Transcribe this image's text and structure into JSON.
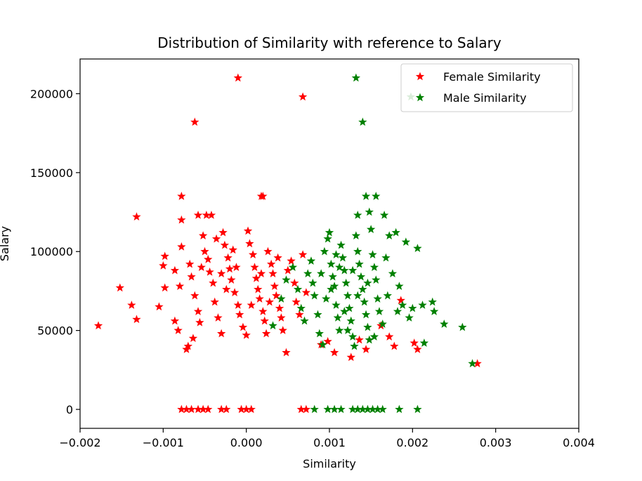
{
  "chart_data": {
    "type": "scatter",
    "title": "Distribution of Similarity with reference to Salary",
    "xlabel": "Similarity",
    "ylabel": "Salary",
    "xlim": [
      -0.002,
      0.004
    ],
    "ylim": [
      -12000,
      222000
    ],
    "xticks": [
      -0.002,
      -0.001,
      0.0,
      0.001,
      0.002,
      0.003,
      0.004
    ],
    "xtick_labels": [
      "−0.002",
      "−0.001",
      "0.000",
      "0.001",
      "0.002",
      "0.003",
      "0.004"
    ],
    "yticks": [
      0,
      50000,
      100000,
      150000,
      200000
    ],
    "ytick_labels": [
      "0",
      "50000",
      "100000",
      "150000",
      "200000"
    ],
    "marker": "star",
    "legend": {
      "position": "upper-right",
      "entries": [
        {
          "label": "Female Similarity",
          "color": "#ff0000"
        },
        {
          "label": "Male Similarity",
          "color": "#008000"
        }
      ]
    },
    "series": [
      {
        "name": "Female Similarity",
        "color": "#ff0000",
        "points": [
          [
            -0.0001,
            210000
          ],
          [
            0.00068,
            198000
          ],
          [
            -0.00062,
            182000
          ],
          [
            -0.00078,
            135000
          ],
          [
            0.00018,
            135000
          ],
          [
            0.0002,
            135000
          ],
          [
            -0.00132,
            122000
          ],
          [
            -0.00058,
            123000
          ],
          [
            -0.00048,
            123000
          ],
          [
            -0.00042,
            123000
          ],
          [
            -0.00078,
            120000
          ],
          [
            -0.00178,
            53000
          ],
          [
            -0.00152,
            77000
          ],
          [
            -0.00138,
            66000
          ],
          [
            -0.00132,
            57000
          ],
          [
            -0.00105,
            65000
          ],
          [
            -0.00098,
            77000
          ],
          [
            -0.001,
            91000
          ],
          [
            -0.00098,
            97000
          ],
          [
            -0.00086,
            88000
          ],
          [
            -0.0008,
            78000
          ],
          [
            -0.00082,
            50000
          ],
          [
            -0.00086,
            56000
          ],
          [
            -0.00072,
            38000
          ],
          [
            -0.0007,
            40000
          ],
          [
            -0.00064,
            45000
          ],
          [
            -0.00078,
            103000
          ],
          [
            -0.00068,
            92000
          ],
          [
            -0.00066,
            84000
          ],
          [
            -0.00062,
            72000
          ],
          [
            -0.00058,
            62000
          ],
          [
            -0.00056,
            55000
          ],
          [
            -0.00052,
            110000
          ],
          [
            -0.0005,
            100000
          ],
          [
            -0.00046,
            95000
          ],
          [
            -0.00044,
            87000
          ],
          [
            -0.0004,
            80000
          ],
          [
            -0.00038,
            68000
          ],
          [
            -0.00034,
            58000
          ],
          [
            -0.0003,
            48000
          ],
          [
            -0.00028,
            112000
          ],
          [
            -0.00026,
            104000
          ],
          [
            -0.00022,
            96000
          ],
          [
            -0.0002,
            89000
          ],
          [
            -0.00018,
            82000
          ],
          [
            -0.00014,
            74000
          ],
          [
            -0.0001,
            66000
          ],
          [
            -8e-05,
            60000
          ],
          [
            -4e-05,
            52000
          ],
          [
            0.0,
            47000
          ],
          [
            2e-05,
            113000
          ],
          [
            4e-05,
            105000
          ],
          [
            8e-05,
            98000
          ],
          [
            0.0001,
            90000
          ],
          [
            0.00012,
            83000
          ],
          [
            0.00014,
            76000
          ],
          [
            0.00016,
            70000
          ],
          [
            0.0002,
            62000
          ],
          [
            0.00022,
            56000
          ],
          [
            0.00024,
            48000
          ],
          [
            0.00026,
            100000
          ],
          [
            0.0003,
            92000
          ],
          [
            0.00032,
            86000
          ],
          [
            0.00034,
            78000
          ],
          [
            0.00036,
            72000
          ],
          [
            0.0004,
            64000
          ],
          [
            0.00042,
            58000
          ],
          [
            0.00044,
            50000
          ],
          [
            0.00048,
            36000
          ],
          [
            0.0005,
            88000
          ],
          [
            0.00054,
            94000
          ],
          [
            0.00058,
            80000
          ],
          [
            0.0006,
            68000
          ],
          [
            0.00064,
            60000
          ],
          [
            0.00068,
            98000
          ],
          [
            0.00072,
            74000
          ],
          [
            -0.00036,
            108000
          ],
          [
            -0.00024,
            76000
          ],
          [
            -0.00012,
            90000
          ],
          [
            6e-05,
            66000
          ],
          [
            0.00018,
            86000
          ],
          [
            -0.00054,
            90000
          ],
          [
            -0.00016,
            101000
          ],
          [
            -0.0003,
            86000
          ],
          [
            0.00028,
            68000
          ],
          [
            0.00038,
            96000
          ],
          [
            0.0009,
            41000
          ],
          [
            0.00098,
            43000
          ],
          [
            0.00106,
            36000
          ],
          [
            0.00126,
            33000
          ],
          [
            0.00136,
            44000
          ],
          [
            0.00144,
            38000
          ],
          [
            0.00162,
            53000
          ],
          [
            0.00172,
            46000
          ],
          [
            0.00178,
            40000
          ],
          [
            0.00186,
            69000
          ],
          [
            0.00202,
            42000
          ],
          [
            0.00206,
            38000
          ],
          [
            0.00278,
            29000
          ],
          [
            -0.00078,
            0
          ],
          [
            -0.00072,
            0
          ],
          [
            -0.00066,
            0
          ],
          [
            -0.00058,
            0
          ],
          [
            -0.00052,
            0
          ],
          [
            -0.00046,
            0
          ],
          [
            -0.0003,
            0
          ],
          [
            -0.00024,
            0
          ],
          [
            -6e-05,
            0
          ],
          [
            0.0,
            0
          ],
          [
            6e-05,
            0
          ],
          [
            0.00066,
            0
          ],
          [
            0.00072,
            0
          ]
        ]
      },
      {
        "name": "Male Similarity",
        "color": "#008000",
        "points": [
          [
            0.00132,
            210000
          ],
          [
            0.00198,
            198000
          ],
          [
            0.0014,
            182000
          ],
          [
            0.00144,
            135000
          ],
          [
            0.00156,
            135000
          ],
          [
            0.00134,
            123000
          ],
          [
            0.00166,
            123000
          ],
          [
            0.00148,
            125000
          ],
          [
            0.00032,
            53000
          ],
          [
            0.00042,
            70000
          ],
          [
            0.00048,
            82000
          ],
          [
            0.00056,
            90000
          ],
          [
            0.00062,
            76000
          ],
          [
            0.00066,
            64000
          ],
          [
            0.0007,
            56000
          ],
          [
            0.00074,
            86000
          ],
          [
            0.00078,
            94000
          ],
          [
            0.00082,
            72000
          ],
          [
            0.00086,
            60000
          ],
          [
            0.00088,
            48000
          ],
          [
            0.00092,
            41000
          ],
          [
            0.00094,
            100000
          ],
          [
            0.00098,
            108000
          ],
          [
            0.001,
            112000
          ],
          [
            0.00102,
            92000
          ],
          [
            0.00104,
            84000
          ],
          [
            0.00106,
            78000
          ],
          [
            0.00108,
            66000
          ],
          [
            0.0011,
            58000
          ],
          [
            0.00112,
            50000
          ],
          [
            0.00114,
            104000
          ],
          [
            0.00116,
            96000
          ],
          [
            0.00118,
            88000
          ],
          [
            0.0012,
            80000
          ],
          [
            0.00122,
            72000
          ],
          [
            0.00124,
            64000
          ],
          [
            0.00126,
            56000
          ],
          [
            0.00128,
            46000
          ],
          [
            0.0013,
            40000
          ],
          [
            0.00132,
            110000
          ],
          [
            0.00134,
            100000
          ],
          [
            0.00136,
            92000
          ],
          [
            0.00138,
            84000
          ],
          [
            0.0014,
            76000
          ],
          [
            0.00142,
            68000
          ],
          [
            0.00144,
            60000
          ],
          [
            0.00146,
            52000
          ],
          [
            0.00148,
            44000
          ],
          [
            0.0015,
            114000
          ],
          [
            0.00152,
            98000
          ],
          [
            0.00154,
            90000
          ],
          [
            0.00156,
            82000
          ],
          [
            0.00158,
            70000
          ],
          [
            0.0016,
            62000
          ],
          [
            0.00164,
            54000
          ],
          [
            0.00168,
            96000
          ],
          [
            0.00172,
            110000
          ],
          [
            0.00176,
            86000
          ],
          [
            0.0018,
            112000
          ],
          [
            0.00184,
            78000
          ],
          [
            0.00188,
            66000
          ],
          [
            0.00192,
            106000
          ],
          [
            0.00196,
            58000
          ],
          [
            0.002,
            64000
          ],
          [
            0.00206,
            102000
          ],
          [
            0.00212,
            66000
          ],
          [
            0.00214,
            42000
          ],
          [
            0.00224,
            68000
          ],
          [
            0.00226,
            62000
          ],
          [
            0.00238,
            54000
          ],
          [
            0.0026,
            52000
          ],
          [
            0.00272,
            29000
          ],
          [
            0.00112,
            90000
          ],
          [
            0.00096,
            70000
          ],
          [
            0.00118,
            62000
          ],
          [
            0.00108,
            98000
          ],
          [
            0.00122,
            50000
          ],
          [
            0.00134,
            72000
          ],
          [
            0.0009,
            86000
          ],
          [
            0.00102,
            76000
          ],
          [
            0.0008,
            80000
          ],
          [
            0.00128,
            88000
          ],
          [
            0.00146,
            80000
          ],
          [
            0.0017,
            72000
          ],
          [
            0.00154,
            46000
          ],
          [
            0.00182,
            62000
          ],
          [
            0.00082,
            0
          ],
          [
            0.00098,
            0
          ],
          [
            0.00106,
            0
          ],
          [
            0.00114,
            0
          ],
          [
            0.00128,
            0
          ],
          [
            0.00134,
            0
          ],
          [
            0.0014,
            0
          ],
          [
            0.00146,
            0
          ],
          [
            0.00152,
            0
          ],
          [
            0.00158,
            0
          ],
          [
            0.00164,
            0
          ],
          [
            0.00184,
            0
          ],
          [
            0.00206,
            0
          ]
        ]
      }
    ]
  }
}
